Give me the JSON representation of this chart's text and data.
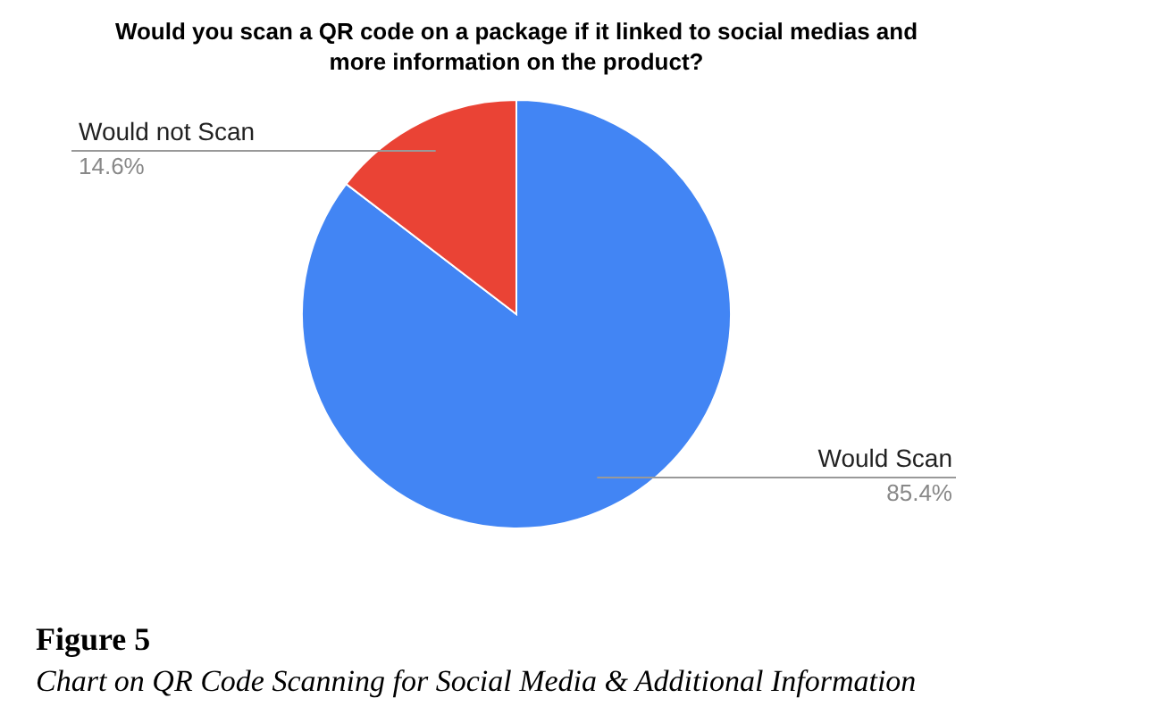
{
  "chart_data": {
    "type": "pie",
    "title": "Would you scan a QR code on a package if it linked to social medias and more information on the product?",
    "categories": [
      "Would Scan",
      "Would not Scan"
    ],
    "values": [
      85.4,
      14.6
    ],
    "value_labels": [
      "85.4%",
      "14.6%"
    ],
    "colors": [
      "#4285f4",
      "#ea4335"
    ],
    "annotations": [
      "Figure 5",
      "Chart on QR Code Scanning for Social Media & Additional Information"
    ]
  }
}
